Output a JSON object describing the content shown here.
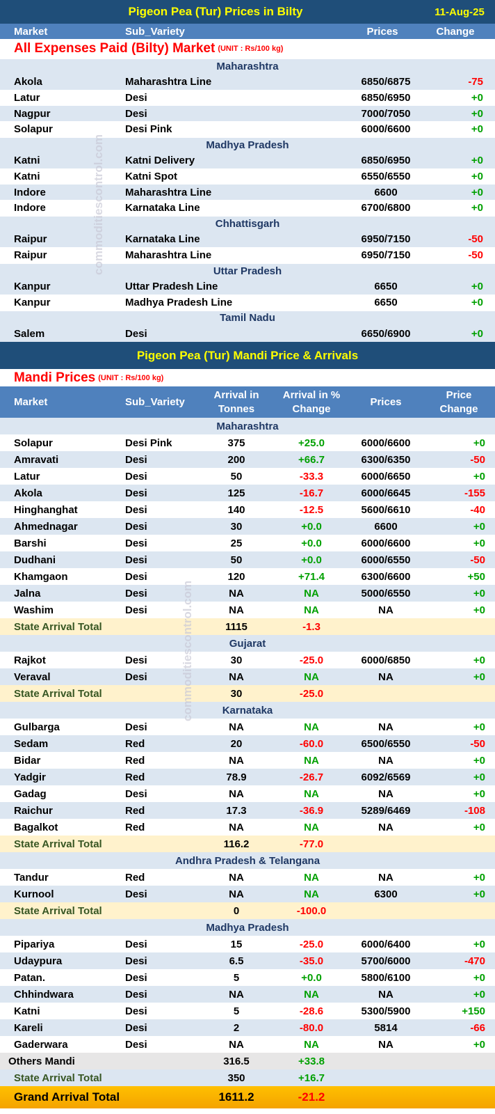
{
  "bilty": {
    "title": "Pigeon Pea (Tur) Prices in Bilty",
    "date": "11-Aug-25",
    "columns": [
      "Market",
      "Sub_Variety",
      "Prices",
      "Change"
    ],
    "section_title": "All Expenses Paid (Bilty) Market",
    "unit": "(UNIT : Rs/100 kg)",
    "groups": [
      {
        "state": "Maharashtra",
        "rows": [
          [
            "Akola",
            "Maharashtra Line",
            "6850/6875",
            "-75"
          ],
          [
            "Latur",
            "Desi",
            "6850/6950",
            "+0"
          ],
          [
            "Nagpur",
            "Desi",
            "7000/7050",
            "+0"
          ],
          [
            "Solapur",
            "Desi Pink",
            "6000/6600",
            "+0"
          ]
        ]
      },
      {
        "state": "Madhya Pradesh",
        "rows": [
          [
            "Katni",
            "Katni Delivery",
            "6850/6950",
            "+0"
          ],
          [
            "Katni",
            "Katni Spot",
            "6550/6550",
            "+0"
          ],
          [
            "Indore",
            "Maharashtra Line",
            "6600",
            "+0"
          ],
          [
            "Indore",
            "Karnataka Line",
            "6700/6800",
            "+0"
          ]
        ]
      },
      {
        "state": "Chhattisgarh",
        "rows": [
          [
            "Raipur",
            "Karnataka Line",
            "6950/7150",
            "-50"
          ],
          [
            "Raipur",
            "Maharashtra Line",
            "6950/7150",
            "-50"
          ]
        ]
      },
      {
        "state": "Uttar Pradesh",
        "rows": [
          [
            "Kanpur",
            "Uttar Pradesh Line",
            "6650",
            "+0"
          ],
          [
            "Kanpur",
            "Madhya Pradesh Line",
            "6650",
            "+0"
          ]
        ]
      },
      {
        "state": "Tamil Nadu",
        "rows": [
          [
            "Salem",
            "Desi",
            "6650/6900",
            "+0"
          ]
        ]
      }
    ]
  },
  "mandi": {
    "title": "Pigeon Pea (Tur) Mandi Price & Arrivals",
    "section_title": "Mandi Prices",
    "unit": "(UNIT : Rs/100 kg)",
    "columns": [
      "Market",
      "Sub_Variety",
      "Arrival in Tonnes",
      "Arrival in % Change",
      "Prices",
      "Price Change"
    ],
    "groups": [
      {
        "state": "Maharashtra",
        "rows": [
          [
            "Solapur",
            "Desi Pink",
            "375",
            "+25.0",
            "6000/6600",
            "+0"
          ],
          [
            "Amravati",
            "Desi",
            "200",
            "+66.7",
            "6300/6350",
            "-50"
          ],
          [
            "Latur",
            "Desi",
            "50",
            "-33.3",
            "6000/6650",
            "+0"
          ],
          [
            "Akola",
            "Desi",
            "125",
            "-16.7",
            "6000/6645",
            "-155"
          ],
          [
            "Hinghanghat",
            "Desi",
            "140",
            "-12.5",
            "5600/6610",
            "-40"
          ],
          [
            "Ahmednagar",
            "Desi",
            "30",
            "+0.0",
            "6600",
            "+0"
          ],
          [
            "Barshi",
            "Desi",
            "25",
            "+0.0",
            "6000/6600",
            "+0"
          ],
          [
            "Dudhani",
            "Desi",
            "50",
            "+0.0",
            "6000/6550",
            "-50"
          ],
          [
            "Khamgaon",
            "Desi",
            "120",
            "+71.4",
            "6300/6600",
            "+50"
          ],
          [
            "Jalna",
            "Desi",
            "NA",
            "NA",
            "5000/6550",
            "+0"
          ],
          [
            "Washim",
            "Desi",
            "NA",
            "NA",
            "NA",
            "+0"
          ]
        ],
        "total": [
          "State Arrival Total",
          "1115",
          "-1.3"
        ]
      },
      {
        "state": "Gujarat",
        "rows": [
          [
            "Rajkot",
            "Desi",
            "30",
            "-25.0",
            "6000/6850",
            "+0"
          ],
          [
            "Veraval",
            "Desi",
            "NA",
            "NA",
            "NA",
            "+0"
          ]
        ],
        "total": [
          "State Arrival Total",
          "30",
          "-25.0"
        ]
      },
      {
        "state": "Karnataka",
        "rows": [
          [
            "Gulbarga",
            "Desi",
            "NA",
            "NA",
            "NA",
            "+0"
          ],
          [
            "Sedam",
            "Red",
            "20",
            "-60.0",
            "6500/6550",
            "-50"
          ],
          [
            "Bidar",
            "Red",
            "NA",
            "NA",
            "NA",
            "+0"
          ],
          [
            "Yadgir",
            "Red",
            "78.9",
            "-26.7",
            "6092/6569",
            "+0"
          ],
          [
            "Gadag",
            "Desi",
            "NA",
            "NA",
            "NA",
            "+0"
          ],
          [
            "Raichur",
            "Red",
            "17.3",
            "-36.9",
            "5289/6469",
            "-108"
          ],
          [
            "Bagalkot",
            "Red",
            "NA",
            "NA",
            "NA",
            "+0"
          ]
        ],
        "total": [
          "State Arrival Total",
          "116.2",
          "-77.0"
        ]
      },
      {
        "state": "Andhra Pradesh & Telangana",
        "rows": [
          [
            "Tandur",
            "Red",
            "NA",
            "NA",
            "NA",
            "+0"
          ],
          [
            "Kurnool",
            "Desi",
            "NA",
            "NA",
            "6300",
            "+0"
          ]
        ],
        "total": [
          "State Arrival Total",
          "0",
          "-100.0"
        ]
      },
      {
        "state": "Madhya Pradesh",
        "rows": [
          [
            "Pipariya",
            "Desi",
            "15",
            "-25.0",
            "6000/6400",
            "+0"
          ],
          [
            "Udaypura",
            "Desi",
            "6.5",
            "-35.0",
            "5700/6000",
            "-470"
          ],
          [
            "Patan.",
            "Desi",
            "5",
            "+0.0",
            "5800/6100",
            "+0"
          ],
          [
            "Chhindwara",
            "Desi",
            "NA",
            "NA",
            "NA",
            "+0"
          ],
          [
            "Katni",
            "Desi",
            "5",
            "-28.6",
            "5300/5900",
            "+150"
          ],
          [
            "Kareli",
            "Desi",
            "2",
            "-80.0",
            "5814",
            "-66"
          ],
          [
            "Gaderwara",
            "Desi",
            "NA",
            "NA",
            "NA",
            "+0"
          ]
        ],
        "others": [
          "Others Mandi",
          "316.5",
          "+33.8"
        ],
        "total": [
          "State Arrival Total",
          "350",
          "+16.7"
        ]
      }
    ],
    "grand_total": [
      "Grand Arrival Total",
      "1611.2",
      "-21.2"
    ]
  },
  "watermark": "commoditiescontrol.com"
}
